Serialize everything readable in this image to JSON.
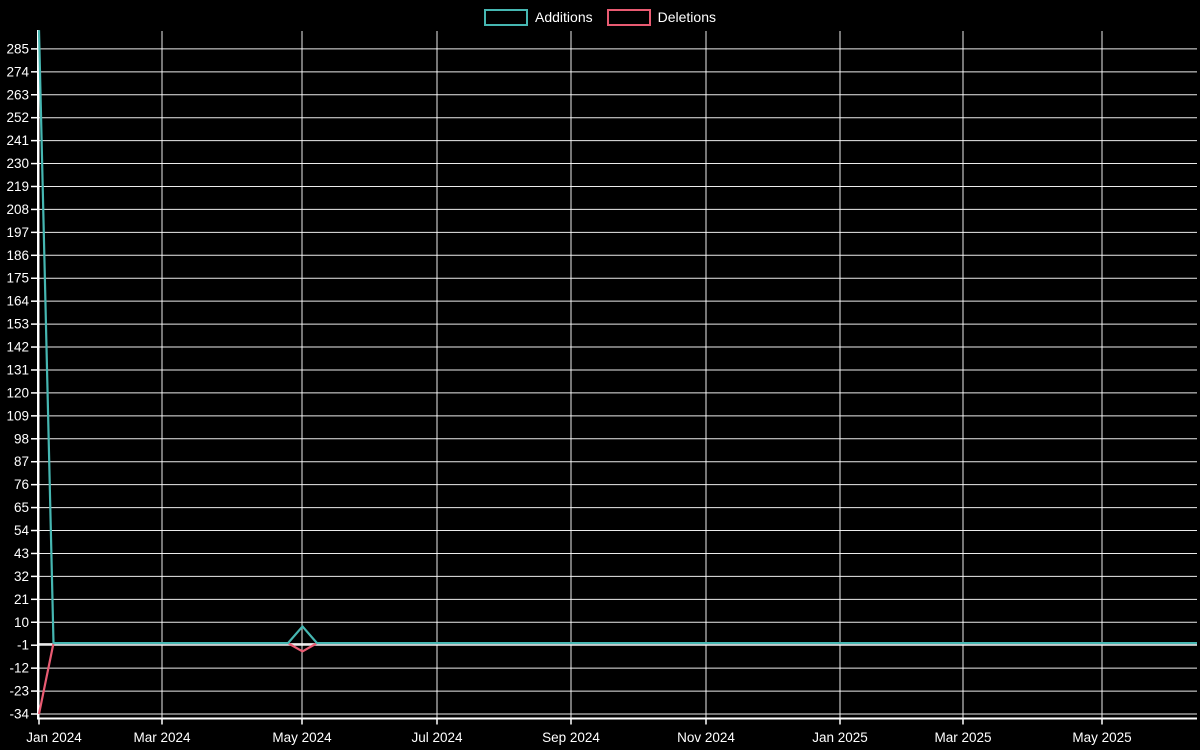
{
  "chart_data": {
    "type": "line",
    "title": "",
    "xlabel": "",
    "ylabel": "",
    "background_color": "#000000",
    "gridline_color": "#ffffff",
    "text_color": "#ffffff",
    "grid": true,
    "legend_position": "top-center",
    "ylim": [
      -34,
      294
    ],
    "y_tick_step": 11,
    "y_ticks": [
      -34,
      -23,
      -12,
      -1,
      10,
      21,
      32,
      43,
      54,
      65,
      76,
      87,
      98,
      109,
      120,
      131,
      142,
      153,
      164,
      175,
      186,
      197,
      208,
      219,
      230,
      241,
      252,
      263,
      274,
      285
    ],
    "x_tick_labels": [
      "Jan 2024",
      "Mar 2024",
      "May 2024",
      "Jul 2024",
      "Sep 2024",
      "Nov 2024",
      "Jan 2025",
      "Mar 2025",
      "May 2025"
    ],
    "x_range_note": "weekly points from 2024-01-01 through mid-June 2025",
    "series": [
      {
        "name": "Additions",
        "color": "#46b7b2",
        "points": [
          {
            "x": "2024-01-01",
            "y": 294
          },
          {
            "x": "2024-01-08",
            "y": 0
          },
          {
            "x": "2024-04-28",
            "y": 0
          },
          {
            "x": "2024-05-05",
            "y": 8
          },
          {
            "x": "2024-05-12",
            "y": 0
          },
          {
            "x": "2025-06-15",
            "y": 0
          }
        ]
      },
      {
        "name": "Deletions",
        "color": "#e95b72",
        "points": [
          {
            "x": "2024-01-01",
            "y": -34
          },
          {
            "x": "2024-01-08",
            "y": 0
          },
          {
            "x": "2024-04-28",
            "y": 0
          },
          {
            "x": "2024-05-05",
            "y": -4
          },
          {
            "x": "2024-05-12",
            "y": 0
          },
          {
            "x": "2025-06-15",
            "y": 0
          }
        ]
      }
    ]
  }
}
